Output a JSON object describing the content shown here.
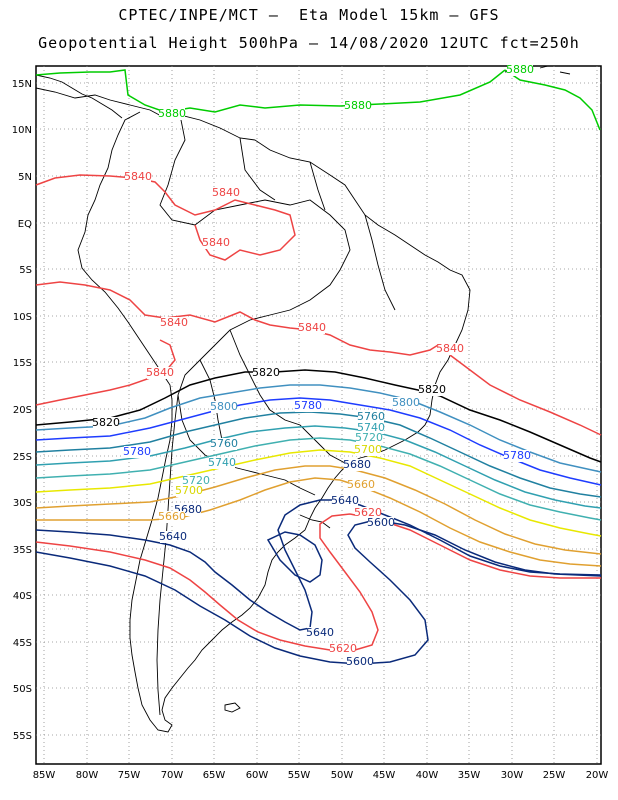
{
  "title": {
    "line1": "CPTEC/INPE/MCT –  Eta Model 15km – GFS",
    "line2": "Geopotential Height 500hPa – 14/08/2020 12UTC fct=250h"
  },
  "axes": {
    "lat_ticks": [
      "15N",
      "10N",
      "5N",
      "EQ",
      "5S",
      "10S",
      "15S",
      "20S",
      "25S",
      "30S",
      "35S",
      "40S",
      "45S",
      "50S",
      "55S"
    ],
    "lon_ticks": [
      "85W",
      "80W",
      "75W",
      "70W",
      "65W",
      "60W",
      "55W",
      "50W",
      "45W",
      "40W",
      "35W",
      "30W",
      "25W",
      "20W"
    ]
  },
  "contours": [
    {
      "level": "5880",
      "color": "#00cc00"
    },
    {
      "level": "5840",
      "color": "#ee4444"
    },
    {
      "level": "5820",
      "color": "#000000"
    },
    {
      "level": "5800",
      "color": "#4090c0"
    },
    {
      "level": "5780",
      "color": "#1e3cff"
    },
    {
      "level": "5760",
      "color": "#2080a0"
    },
    {
      "level": "5740",
      "color": "#30a0b0"
    },
    {
      "level": "5720",
      "color": "#40b0b0"
    },
    {
      "level": "5700",
      "color": "#e8e800"
    },
    {
      "level": "5680",
      "color": "#e0a030"
    },
    {
      "level": "5660",
      "color": "#e0a030"
    },
    {
      "level": "5640",
      "color": "#0a2a7a"
    },
    {
      "level": "5620",
      "color": "#ee4444"
    },
    {
      "level": "5600",
      "color": "#0a2a7a"
    }
  ],
  "contour_labels": [
    {
      "text": "5880",
      "color": "#00cc00"
    },
    {
      "text": "5880",
      "color": "#00cc00"
    },
    {
      "text": "5880",
      "color": "#00cc00"
    },
    {
      "text": "5840",
      "color": "#ee4444"
    },
    {
      "text": "5840",
      "color": "#ee4444"
    },
    {
      "text": "5840",
      "color": "#ee4444"
    },
    {
      "text": "5840",
      "color": "#ee4444"
    },
    {
      "text": "5840",
      "color": "#ee4444"
    },
    {
      "text": "5840",
      "color": "#ee4444"
    },
    {
      "text": "5840",
      "color": "#ee4444"
    },
    {
      "text": "5820",
      "color": "#000000"
    },
    {
      "text": "5820",
      "color": "#000000"
    },
    {
      "text": "5820",
      "color": "#000000"
    },
    {
      "text": "5800",
      "color": "#4090c0"
    },
    {
      "text": "5800",
      "color": "#4090c0"
    },
    {
      "text": "5780",
      "color": "#1e3cff"
    },
    {
      "text": "5780",
      "color": "#1e3cff"
    },
    {
      "text": "5780",
      "color": "#1e3cff"
    },
    {
      "text": "5760",
      "color": "#2080a0"
    },
    {
      "text": "5760",
      "color": "#2080a0"
    },
    {
      "text": "5740",
      "color": "#30a0b0"
    },
    {
      "text": "5740",
      "color": "#30a0b0"
    },
    {
      "text": "5720",
      "color": "#40b0b0"
    },
    {
      "text": "5720",
      "color": "#40b0b0"
    },
    {
      "text": "5700",
      "color": "#d8d800"
    },
    {
      "text": "5700",
      "color": "#d8d800"
    },
    {
      "text": "5680",
      "color": "#0a2a7a"
    },
    {
      "text": "5680",
      "color": "#0a2a7a"
    },
    {
      "text": "5660",
      "color": "#e0a030"
    },
    {
      "text": "5660",
      "color": "#e0a030"
    },
    {
      "text": "5640",
      "color": "#0a2a7a"
    },
    {
      "text": "5640",
      "color": "#0a2a7a"
    },
    {
      "text": "5640",
      "color": "#0a2a7a"
    },
    {
      "text": "5620",
      "color": "#ee4444"
    },
    {
      "text": "5620",
      "color": "#ee4444"
    },
    {
      "text": "5600",
      "color": "#0a2a7a"
    },
    {
      "text": "5600",
      "color": "#0a2a7a"
    }
  ]
}
